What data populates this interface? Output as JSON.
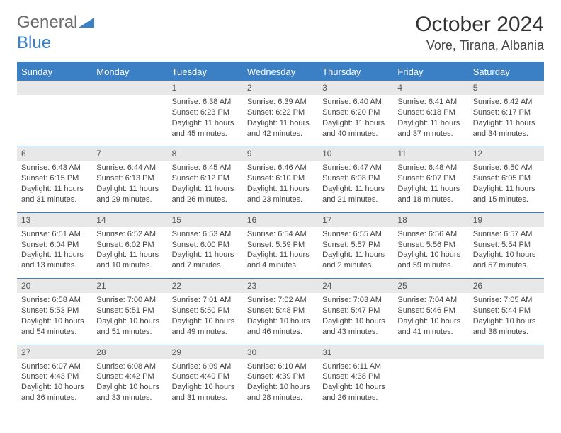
{
  "logo": {
    "text_part1": "General",
    "text_part2": "Blue",
    "triangle_color": "#3b7fc4"
  },
  "header": {
    "title": "October 2024",
    "location": "Vore, Tirana, Albania"
  },
  "colors": {
    "header_bg": "#3b7fc4",
    "header_border": "#3b7fc4",
    "daynum_bg": "#e8e8e8",
    "text": "#333333"
  },
  "day_headers": [
    "Sunday",
    "Monday",
    "Tuesday",
    "Wednesday",
    "Thursday",
    "Friday",
    "Saturday"
  ],
  "weeks": [
    [
      null,
      null,
      {
        "n": "1",
        "sr": "6:38 AM",
        "ss": "6:23 PM",
        "dl": "11 hours and 45 minutes."
      },
      {
        "n": "2",
        "sr": "6:39 AM",
        "ss": "6:22 PM",
        "dl": "11 hours and 42 minutes."
      },
      {
        "n": "3",
        "sr": "6:40 AM",
        "ss": "6:20 PM",
        "dl": "11 hours and 40 minutes."
      },
      {
        "n": "4",
        "sr": "6:41 AM",
        "ss": "6:18 PM",
        "dl": "11 hours and 37 minutes."
      },
      {
        "n": "5",
        "sr": "6:42 AM",
        "ss": "6:17 PM",
        "dl": "11 hours and 34 minutes."
      }
    ],
    [
      {
        "n": "6",
        "sr": "6:43 AM",
        "ss": "6:15 PM",
        "dl": "11 hours and 31 minutes."
      },
      {
        "n": "7",
        "sr": "6:44 AM",
        "ss": "6:13 PM",
        "dl": "11 hours and 29 minutes."
      },
      {
        "n": "8",
        "sr": "6:45 AM",
        "ss": "6:12 PM",
        "dl": "11 hours and 26 minutes."
      },
      {
        "n": "9",
        "sr": "6:46 AM",
        "ss": "6:10 PM",
        "dl": "11 hours and 23 minutes."
      },
      {
        "n": "10",
        "sr": "6:47 AM",
        "ss": "6:08 PM",
        "dl": "11 hours and 21 minutes."
      },
      {
        "n": "11",
        "sr": "6:48 AM",
        "ss": "6:07 PM",
        "dl": "11 hours and 18 minutes."
      },
      {
        "n": "12",
        "sr": "6:50 AM",
        "ss": "6:05 PM",
        "dl": "11 hours and 15 minutes."
      }
    ],
    [
      {
        "n": "13",
        "sr": "6:51 AM",
        "ss": "6:04 PM",
        "dl": "11 hours and 13 minutes."
      },
      {
        "n": "14",
        "sr": "6:52 AM",
        "ss": "6:02 PM",
        "dl": "11 hours and 10 minutes."
      },
      {
        "n": "15",
        "sr": "6:53 AM",
        "ss": "6:00 PM",
        "dl": "11 hours and 7 minutes."
      },
      {
        "n": "16",
        "sr": "6:54 AM",
        "ss": "5:59 PM",
        "dl": "11 hours and 4 minutes."
      },
      {
        "n": "17",
        "sr": "6:55 AM",
        "ss": "5:57 PM",
        "dl": "11 hours and 2 minutes."
      },
      {
        "n": "18",
        "sr": "6:56 AM",
        "ss": "5:56 PM",
        "dl": "10 hours and 59 minutes."
      },
      {
        "n": "19",
        "sr": "6:57 AM",
        "ss": "5:54 PM",
        "dl": "10 hours and 57 minutes."
      }
    ],
    [
      {
        "n": "20",
        "sr": "6:58 AM",
        "ss": "5:53 PM",
        "dl": "10 hours and 54 minutes."
      },
      {
        "n": "21",
        "sr": "7:00 AM",
        "ss": "5:51 PM",
        "dl": "10 hours and 51 minutes."
      },
      {
        "n": "22",
        "sr": "7:01 AM",
        "ss": "5:50 PM",
        "dl": "10 hours and 49 minutes."
      },
      {
        "n": "23",
        "sr": "7:02 AM",
        "ss": "5:48 PM",
        "dl": "10 hours and 46 minutes."
      },
      {
        "n": "24",
        "sr": "7:03 AM",
        "ss": "5:47 PM",
        "dl": "10 hours and 43 minutes."
      },
      {
        "n": "25",
        "sr": "7:04 AM",
        "ss": "5:46 PM",
        "dl": "10 hours and 41 minutes."
      },
      {
        "n": "26",
        "sr": "7:05 AM",
        "ss": "5:44 PM",
        "dl": "10 hours and 38 minutes."
      }
    ],
    [
      {
        "n": "27",
        "sr": "6:07 AM",
        "ss": "4:43 PM",
        "dl": "10 hours and 36 minutes."
      },
      {
        "n": "28",
        "sr": "6:08 AM",
        "ss": "4:42 PM",
        "dl": "10 hours and 33 minutes."
      },
      {
        "n": "29",
        "sr": "6:09 AM",
        "ss": "4:40 PM",
        "dl": "10 hours and 31 minutes."
      },
      {
        "n": "30",
        "sr": "6:10 AM",
        "ss": "4:39 PM",
        "dl": "10 hours and 28 minutes."
      },
      {
        "n": "31",
        "sr": "6:11 AM",
        "ss": "4:38 PM",
        "dl": "10 hours and 26 minutes."
      },
      null,
      null
    ]
  ],
  "labels": {
    "sunrise": "Sunrise:",
    "sunset": "Sunset:",
    "daylight": "Daylight:"
  }
}
